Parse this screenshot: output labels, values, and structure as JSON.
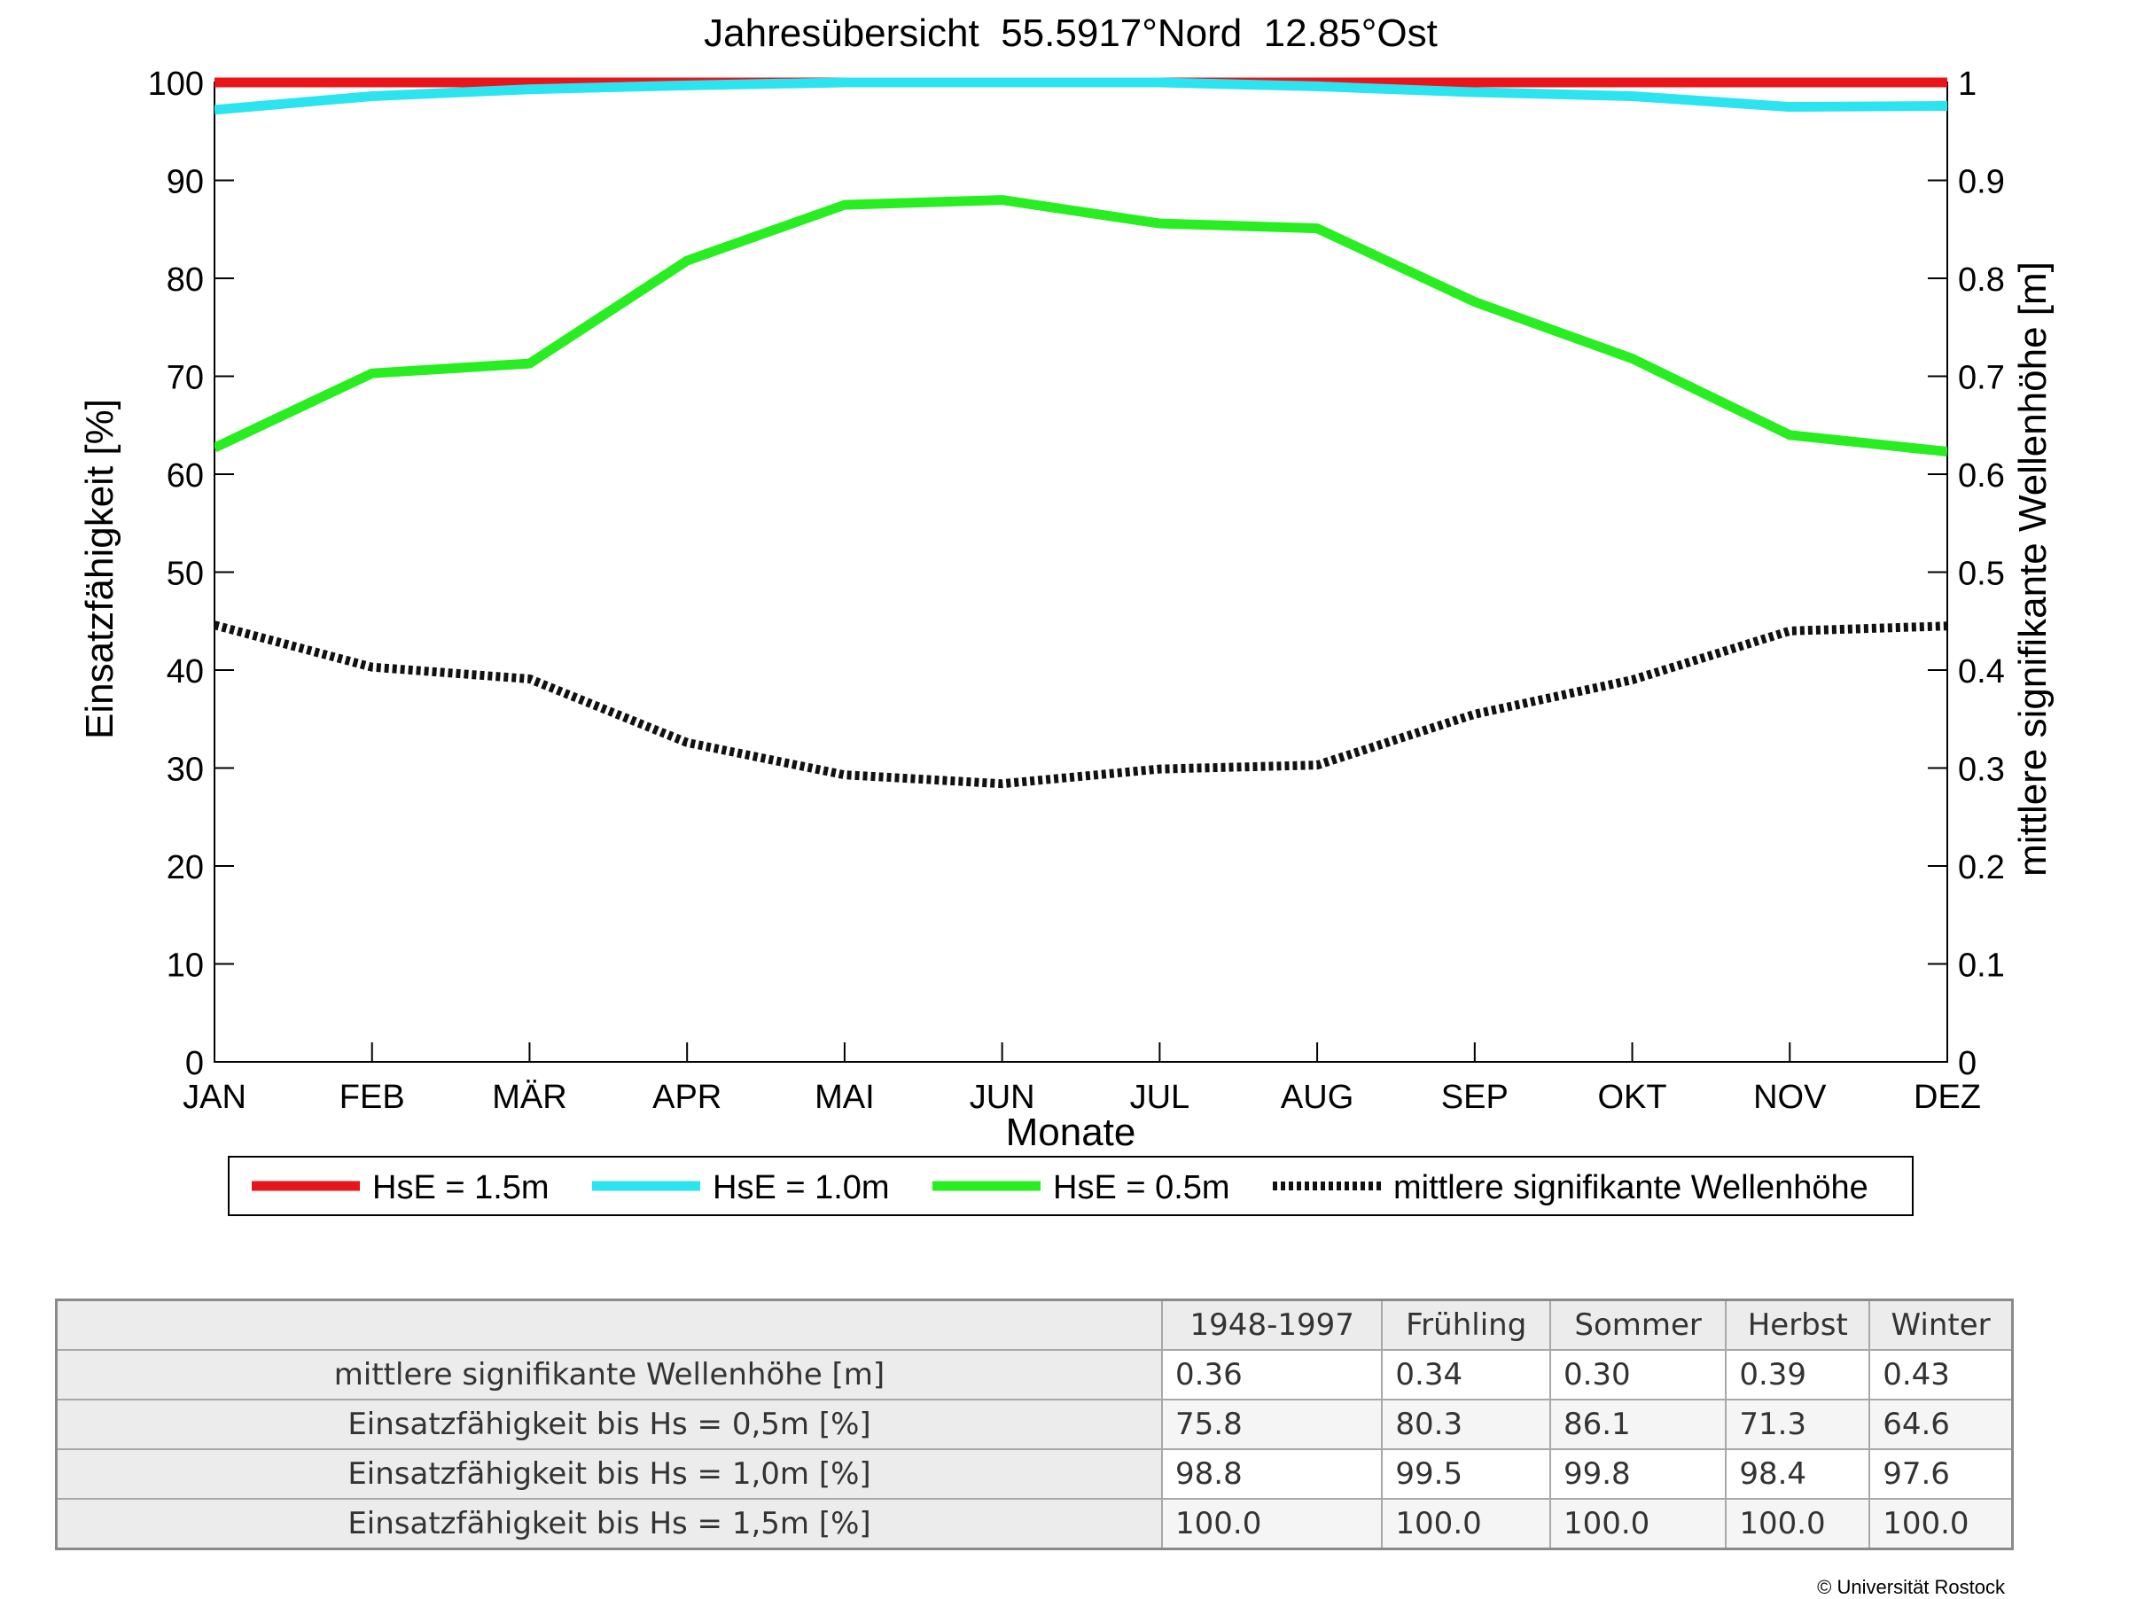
{
  "chart_data": {
    "type": "line",
    "title": "Jahresübersicht  55.5917°Nord  12.85°Ost",
    "xlabel": "Monate",
    "ylabel": "Einsatzfähigkeit [%]",
    "ylabel_right": "mittlere signifikante Wellenhöhe [m]",
    "categories": [
      "JAN",
      "FEB",
      "MÄR",
      "APR",
      "MAI",
      "JUN",
      "JUL",
      "AUG",
      "SEP",
      "OKT",
      "NOV",
      "DEZ"
    ],
    "ylim": [
      0,
      100
    ],
    "ylim_right": [
      0,
      1
    ],
    "yticks": [
      "0",
      "10",
      "20",
      "30",
      "40",
      "50",
      "60",
      "70",
      "80",
      "90",
      "100"
    ],
    "yticks_right": [
      "0",
      "0.1",
      "0.2",
      "0.3",
      "0.4",
      "0.5",
      "0.6",
      "0.7",
      "0.8",
      "0.9",
      "1"
    ],
    "grid": false,
    "legend_placement": "below",
    "series": [
      {
        "name": "HsE = 1.5m",
        "axis": "left",
        "color": "#e8151b",
        "style": "solid",
        "values": [
          100,
          100,
          100,
          100,
          100,
          100,
          100,
          100,
          100,
          100,
          100,
          100
        ]
      },
      {
        "name": "HsE = 1.0m",
        "axis": "left",
        "color": "#2be4f0",
        "style": "solid",
        "values": [
          97.2,
          98.6,
          99.3,
          99.7,
          100,
          100,
          100,
          99.6,
          99.0,
          98.6,
          97.5,
          97.6
        ]
      },
      {
        "name": "HsE = 0.5m",
        "axis": "left",
        "color": "#28ee21",
        "style": "solid",
        "values": [
          62.7,
          70.3,
          71.3,
          81.8,
          87.5,
          88.0,
          85.6,
          85.1,
          77.6,
          71.8,
          64.0,
          62.3
        ]
      },
      {
        "name": "mittlere signifikante Wellenhöhe",
        "axis": "right",
        "color": "#111111",
        "style": "dotted",
        "values": [
          0.446,
          0.403,
          0.391,
          0.326,
          0.293,
          0.284,
          0.299,
          0.303,
          0.355,
          0.39,
          0.44,
          0.445
        ]
      }
    ]
  },
  "table": {
    "headers": [
      "1948-1997",
      "Frühling",
      "Sommer",
      "Herbst",
      "Winter"
    ],
    "rows": [
      {
        "label": "mittlere signifikante Wellenhöhe [m]",
        "values": [
          "0.36",
          "0.34",
          "0.30",
          "0.39",
          "0.43"
        ]
      },
      {
        "label": "Einsatzfähigkeit bis Hs = 0,5m [%]",
        "values": [
          "75.8",
          "80.3",
          "86.1",
          "71.3",
          "64.6"
        ]
      },
      {
        "label": "Einsatzfähigkeit bis Hs = 1,0m [%]",
        "values": [
          "98.8",
          "99.5",
          "99.8",
          "98.4",
          "97.6"
        ]
      },
      {
        "label": "Einsatzfähigkeit bis Hs = 1,5m [%]",
        "values": [
          "100.0",
          "100.0",
          "100.0",
          "100.0",
          "100.0"
        ]
      }
    ]
  },
  "copyright": "© Universität Rostock"
}
